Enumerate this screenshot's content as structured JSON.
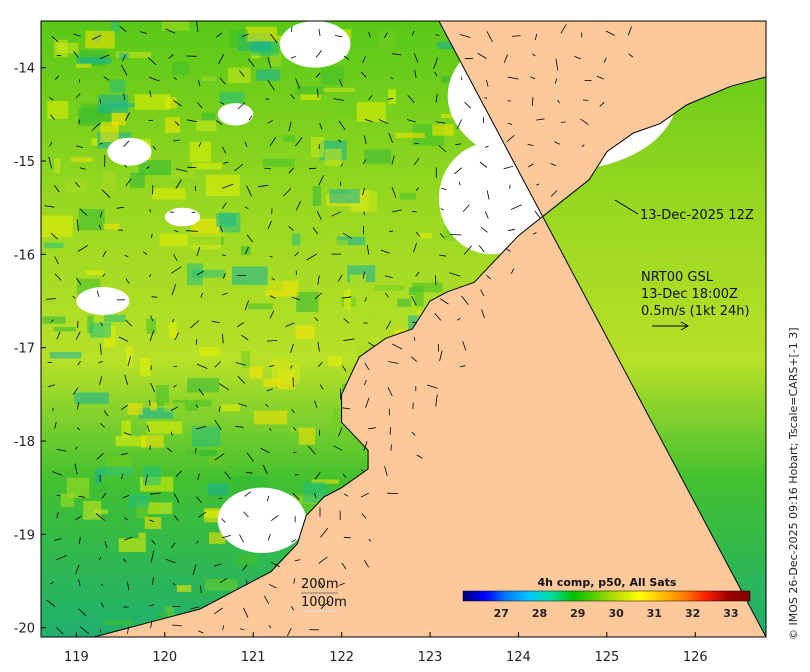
{
  "map": {
    "lon_range": [
      118.6,
      126.8
    ],
    "lat_range": [
      -20.1,
      -13.5
    ],
    "lon_ticks": [
      119,
      120,
      121,
      122,
      123,
      124,
      125,
      126
    ],
    "lat_ticks": [
      -14,
      -15,
      -16,
      -17,
      -18,
      -19,
      -20
    ],
    "land_color": "#fdc89a",
    "cloud_color": "#ffffff",
    "land_points": [
      [
        123.1,
        -13.5
      ],
      [
        126.8,
        -13.5
      ],
      [
        126.8,
        -14.1
      ],
      [
        126.4,
        -14.2
      ],
      [
        125.9,
        -14.4
      ],
      [
        125.6,
        -14.6
      ],
      [
        125.3,
        -14.7
      ],
      [
        125.0,
        -14.9
      ],
      [
        124.8,
        -15.2
      ],
      [
        124.4,
        -15.5
      ],
      [
        124.0,
        -15.8
      ],
      [
        123.7,
        -16.1
      ],
      [
        123.5,
        -16.3
      ],
      [
        123.2,
        -16.4
      ],
      [
        123.0,
        -16.5
      ],
      [
        122.8,
        -16.8
      ],
      [
        122.5,
        -16.9
      ],
      [
        122.2,
        -17.1
      ],
      [
        122.0,
        -17.5
      ],
      [
        122.0,
        -17.8
      ],
      [
        122.3,
        -18.1
      ],
      [
        122.3,
        -18.3
      ],
      [
        122.0,
        -18.5
      ],
      [
        121.8,
        -18.6
      ],
      [
        121.6,
        -18.8
      ],
      [
        121.5,
        -19.1
      ],
      [
        121.2,
        -19.4
      ],
      [
        120.8,
        -19.6
      ],
      [
        120.4,
        -19.8
      ],
      [
        120.0,
        -19.9
      ],
      [
        119.6,
        -20.0
      ],
      [
        119.2,
        -20.1
      ],
      [
        126.8,
        -20.1
      ]
    ],
    "cloud_blobs": [
      {
        "lon": 124.5,
        "lat": -14.3,
        "rlon": 1.3,
        "rlat": 0.8
      },
      {
        "lon": 123.7,
        "lat": -15.4,
        "rlon": 0.6,
        "rlat": 0.6
      },
      {
        "lon": 121.1,
        "lat": -18.85,
        "rlon": 0.5,
        "rlat": 0.35
      },
      {
        "lon": 121.7,
        "lat": -13.75,
        "rlon": 0.4,
        "rlat": 0.25
      },
      {
        "lon": 119.3,
        "lat": -16.5,
        "rlon": 0.3,
        "rlat": 0.15
      },
      {
        "lon": 119.6,
        "lat": -14.9,
        "rlon": 0.25,
        "rlat": 0.15
      },
      {
        "lon": 120.8,
        "lat": -14.5,
        "rlon": 0.2,
        "rlat": 0.12
      },
      {
        "lon": 120.2,
        "lat": -15.6,
        "rlon": 0.2,
        "rlat": 0.1
      }
    ]
  },
  "annotations": {
    "valid_time": "13-Dec-2025 12Z",
    "model_line1": "NRT00 GSL",
    "model_line2": "13-Dec 18:00Z",
    "vector_scale": "0.5m/s (1kt 24h)",
    "depth1": "200m",
    "depth2": "1000m"
  },
  "colorbar": {
    "title": "4h comp, p50, All Sats",
    "min": 26,
    "max": 33.5,
    "ticks": [
      27,
      28,
      29,
      30,
      31,
      32,
      33
    ],
    "stops": [
      "#00007f",
      "#0000ff",
      "#0080ff",
      "#00c8ff",
      "#00e0a0",
      "#00c000",
      "#60d000",
      "#c0e000",
      "#ffff00",
      "#ffc000",
      "#ff8000",
      "#ff2000",
      "#a00000",
      "#800000"
    ]
  },
  "credit": "© IMOS 26-Dec-2025 09:16 Hobart; Tscale=CARS+[-1 3]"
}
